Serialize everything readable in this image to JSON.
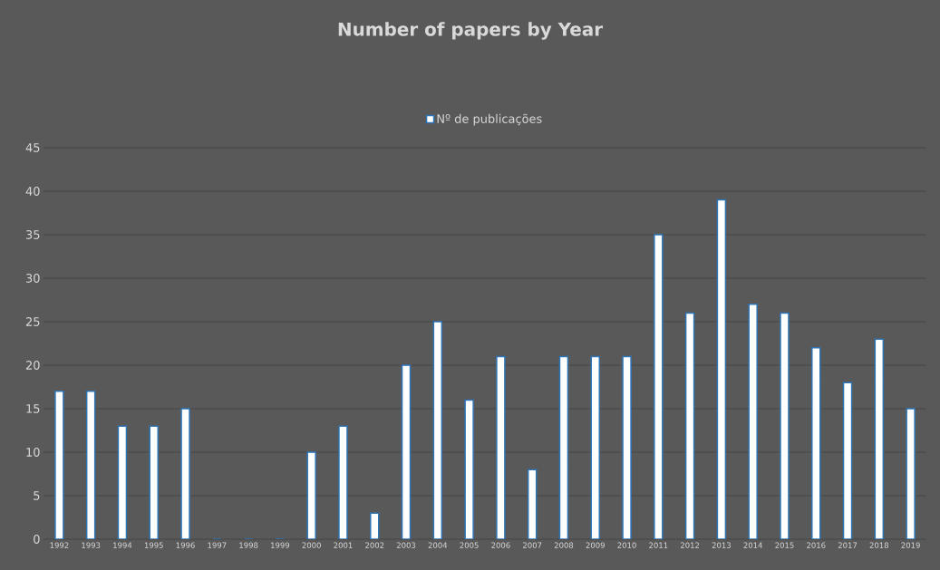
{
  "chart_data": {
    "type": "bar",
    "title": "Number of papers by Year",
    "categories": [
      "1992",
      "1993",
      "1994",
      "1995",
      "1996",
      "1997",
      "1998",
      "1999",
      "2000",
      "2001",
      "2002",
      "2003",
      "2004",
      "2005",
      "2006",
      "2007",
      "2008",
      "2009",
      "2010",
      "2011",
      "2012",
      "2013",
      "2014",
      "2015",
      "2016",
      "2017",
      "2018",
      "2019"
    ],
    "series": [
      {
        "name": "Nº de publicações",
        "color": "#ffffff",
        "values": [
          17,
          17,
          13,
          13,
          15,
          0,
          0,
          0,
          10,
          13,
          3,
          20,
          25,
          16,
          21,
          8,
          21,
          21,
          21,
          35,
          26,
          39,
          27,
          26,
          22,
          18,
          23,
          15
        ]
      }
    ],
    "ylim": [
      0,
      45
    ],
    "yticks": [
      0,
      5,
      10,
      15,
      20,
      25,
      30,
      35,
      40,
      45
    ],
    "grid": "y",
    "legend": "top"
  }
}
